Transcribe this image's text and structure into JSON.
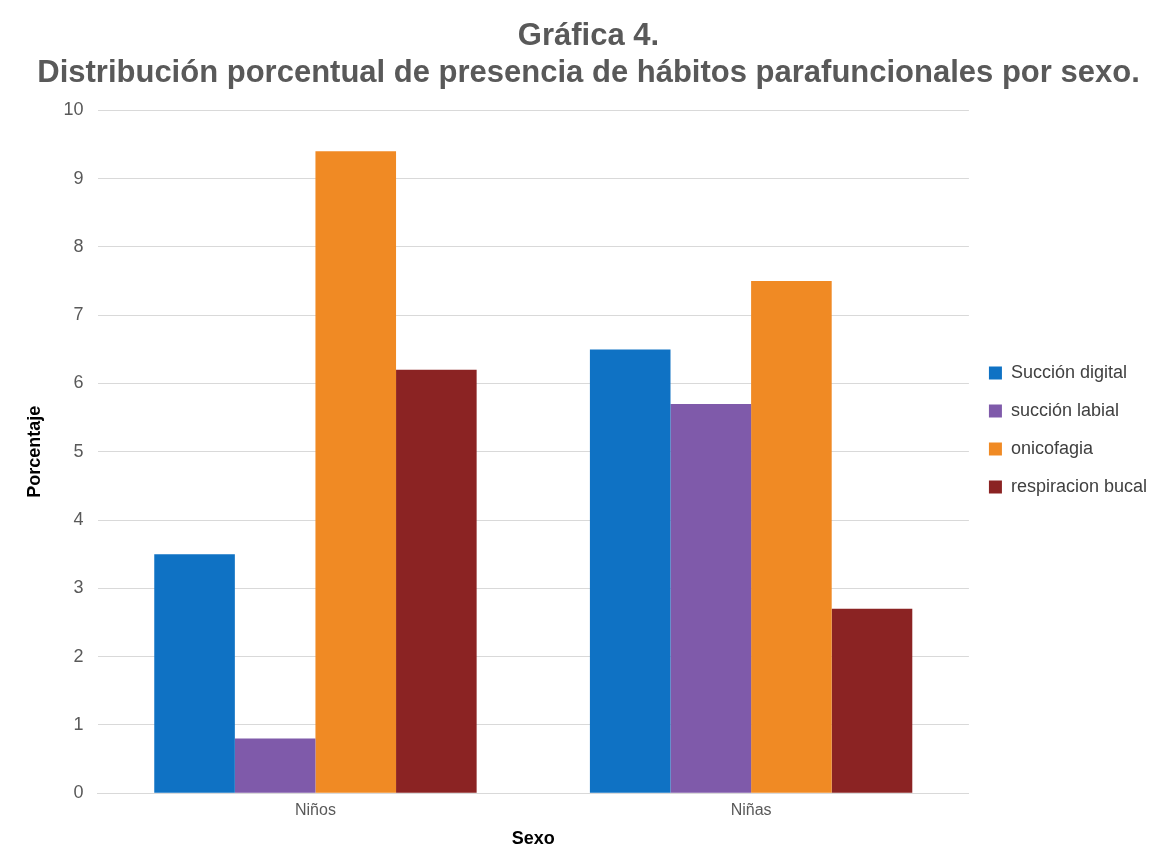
{
  "chart_data": {
    "type": "bar",
    "title": "Gráfica 4.\nDistribución porcentual de presencia de hábitos parafuncionales por sexo.",
    "xlabel": "Sexo",
    "ylabel": "Porcentaje",
    "categories": [
      "Niños",
      "Niñas"
    ],
    "series": [
      {
        "name": "Succión digital",
        "color": "#0f72c4",
        "values": [
          3.5,
          6.5
        ]
      },
      {
        "name": "succión labial",
        "color": "#7f5aaa",
        "values": [
          0.8,
          5.7
        ]
      },
      {
        "name": "onicofagia",
        "color": "#f08a24",
        "values": [
          9.4,
          7.5
        ]
      },
      {
        "name": "respiracion bucal",
        "color": "#8b2323",
        "values": [
          6.2,
          2.7
        ]
      }
    ],
    "ylim": [
      0,
      10
    ],
    "yticks": [
      0,
      1,
      2,
      3,
      4,
      5,
      6,
      7,
      8,
      9,
      10
    ],
    "grid": "y",
    "legend": "right"
  }
}
